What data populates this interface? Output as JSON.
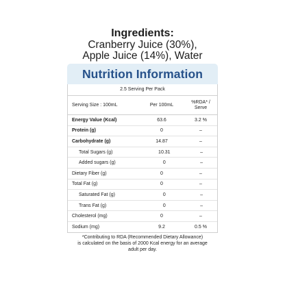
{
  "ingredients": {
    "title": "Ingredients:",
    "line1": "Cranberry Juice (30%),",
    "line2": "Apple Juice (14%), Water"
  },
  "nutrition": {
    "title": "Nutrition Information",
    "serving_per_pack": "2.5 Serving Per Pack",
    "header": {
      "serving_size": "Serving Size : 100mL",
      "per": "Per 100mL",
      "rda_line1": "%RDA* /",
      "rda_line2": "Serve"
    },
    "rows": [
      {
        "name": "Energy Value (Kcal)",
        "value": "63.6",
        "rda": "3.2 %"
      },
      {
        "name": "Protein (g)",
        "value": "0",
        "rda": "–"
      },
      {
        "name": "Carbohydrate (g)",
        "value": "14.87",
        "rda": "–"
      },
      {
        "name": "Total Sugars (g)",
        "value": "10.31",
        "rda": "–"
      },
      {
        "name": "Added sugars (g)",
        "value": "0",
        "rda": "–"
      },
      {
        "name": "Dietary Fiber (g)",
        "value": "0",
        "rda": "–"
      },
      {
        "name": "Total Fat (g)",
        "value": "0",
        "rda": "–"
      },
      {
        "name": "Saturated Fat (g)",
        "value": "0",
        "rda": "–"
      },
      {
        "name": "Trans Fat (g)",
        "value": "0",
        "rda": "–"
      },
      {
        "name": "Cholesterol (mg)",
        "value": "0",
        "rda": "–"
      },
      {
        "name": "Sodium (mg)",
        "value": "9.2",
        "rda": "0.5 %"
      }
    ]
  },
  "footnote": {
    "line1": "*Contributing to RDA (Recommended Dietary Allowance)",
    "line2": "is calculated on the basis of 2000 Kcal energy for an average",
    "line3": "adult per day."
  }
}
